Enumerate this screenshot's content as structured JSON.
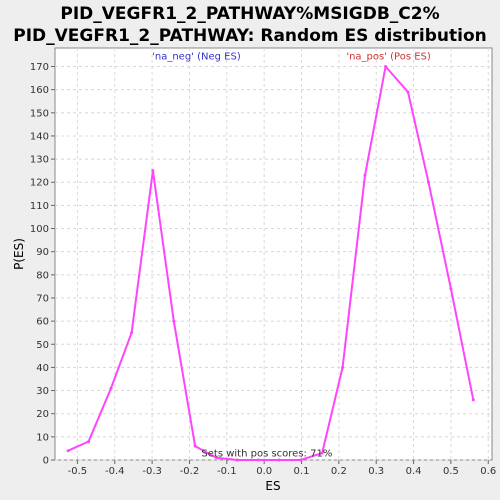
{
  "chart_data": {
    "type": "line",
    "title": [
      "PID_VEGFR1_2_PATHWAY%MSIGDB_C2%",
      "PID_VEGFR1_2_PATHWAY: Random ES distribution"
    ],
    "xlabel": "ES",
    "ylabel": "P(ES)",
    "xlim": [
      -0.56,
      0.61
    ],
    "ylim": [
      0,
      178
    ],
    "xticks": [
      -0.5,
      -0.4,
      -0.3,
      -0.2,
      -0.1,
      0.0,
      0.1,
      0.2,
      0.3,
      0.4,
      0.5,
      0.6
    ],
    "xtick_labels": [
      "-0.5",
      "-0.4",
      "-0.3",
      "-0.2",
      "-0.1",
      "0.0",
      "0.1",
      "0.2",
      "0.3",
      "0.4",
      "0.5",
      "0.6"
    ],
    "yticks": [
      0,
      10,
      20,
      30,
      40,
      50,
      60,
      70,
      80,
      90,
      100,
      110,
      120,
      130,
      140,
      150,
      160,
      170
    ],
    "grid": true,
    "series": [
      {
        "color": "#ff44ff",
        "x": [
          -0.525,
          -0.47,
          -0.41,
          -0.355,
          -0.298,
          -0.242,
          -0.185,
          -0.128,
          -0.072,
          -0.015,
          0.04,
          0.098,
          0.155,
          0.21,
          0.27,
          0.325,
          0.385,
          0.44,
          0.5,
          0.56
        ],
        "y": [
          4,
          8,
          31,
          55,
          125,
          60,
          6,
          1,
          0,
          0,
          0,
          0,
          3,
          40,
          123,
          170,
          159,
          120,
          74,
          26
        ]
      }
    ],
    "annotations": [
      {
        "text": "'na_neg' (Neg ES)",
        "x": -0.3,
        "y": 173,
        "color": "#3333cc"
      },
      {
        "text": "'na_pos' (Pos ES)",
        "x": 0.22,
        "y": 173,
        "color": "#cc3333"
      },
      {
        "text": "Sets with pos scores: 71%",
        "x": -0.168,
        "y": 1.5,
        "color": "#333333"
      }
    ]
  }
}
